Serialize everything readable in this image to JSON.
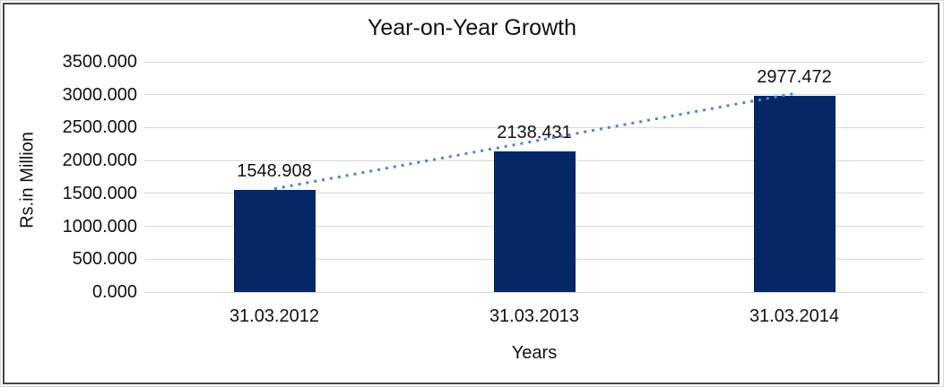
{
  "chart_data": {
    "type": "bar",
    "title": "Year-on-Year Growth",
    "xlabel": "Years",
    "ylabel": "Rs.in Million",
    "categories": [
      "31.03.2012",
      "31.03.2013",
      "31.03.2014"
    ],
    "values": [
      1548.908,
      2138.431,
      2977.472
    ],
    "data_labels": [
      "1548.908",
      "2138.431",
      "2977.472"
    ],
    "ylim": [
      0,
      3500
    ],
    "ytick_step": 500,
    "ytick_labels": [
      "0.000",
      "500.000",
      "1000.000",
      "1500.000",
      "2000.000",
      "2500.000",
      "3000.000",
      "3500.000"
    ],
    "grid": "horizontal-only",
    "legend": "none",
    "trendline": {
      "type": "linear",
      "style": "dotted"
    },
    "colors": {
      "bar": "#052766",
      "trendline": "#4f86c8",
      "gridline": "#d9d9d9",
      "text": "#111111",
      "frame_border": "#474747",
      "outer_border": "#d9d9d9",
      "background": "#ffffff"
    }
  }
}
